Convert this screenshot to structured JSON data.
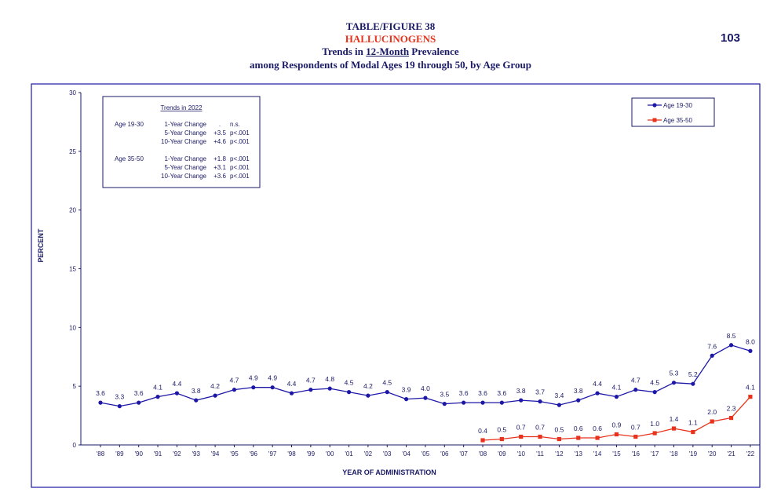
{
  "header": {
    "figure_label": "TABLE/FIGURE 38",
    "drug_name": "HALLUCINOGENS",
    "subtitle_pre": "Trends in ",
    "subtitle_emph": "12-Month",
    "subtitle_post": " Prevalence",
    "subtitle_line2": "among Respondents of Modal Ages 19 through 50, by Age Group",
    "page_number": "103"
  },
  "colors": {
    "title": "#1a1a66",
    "drug_name": "#e8321b",
    "age_19_30": "#1c17a6",
    "age_35_50": "#e8321b",
    "frame": "#1c17a6"
  },
  "trends_box": {
    "title": "Trends in 2022",
    "groups": [
      {
        "label": "Age 19-30",
        "rows": [
          {
            "change": "1-Year Change",
            "value": ".",
            "sig": "n.s."
          },
          {
            "change": "5-Year Change",
            "value": "+3.5",
            "sig": "p<.001"
          },
          {
            "change": "10-Year Change",
            "value": "+4.6",
            "sig": "p<.001"
          }
        ]
      },
      {
        "label": "Age 35-50",
        "rows": [
          {
            "change": "1-Year Change",
            "value": "+1.8",
            "sig": "p<.001"
          },
          {
            "change": "5-Year Change",
            "value": "+3.1",
            "sig": "p<.001"
          },
          {
            "change": "10-Year Change",
            "value": "+3.6",
            "sig": "p<.001"
          }
        ]
      }
    ]
  },
  "chart_data": {
    "type": "line",
    "xlabel": "YEAR OF ADMINISTRATION",
    "ylabel": "PERCENT",
    "ylim": [
      0,
      30
    ],
    "yticks": [
      0,
      5,
      10,
      15,
      20,
      25,
      30
    ],
    "grid": false,
    "legend_position": "top-right",
    "categories": [
      "'88",
      "'89",
      "'90",
      "'91",
      "'92",
      "'93",
      "'94",
      "'95",
      "'96",
      "'97",
      "'98",
      "'99",
      "'00",
      "'01",
      "'02",
      "'03",
      "'04",
      "'05",
      "'06",
      "'07",
      "'08",
      "'09",
      "'10",
      "'11",
      "'12",
      "'13",
      "'14",
      "'15",
      "'16",
      "'17",
      "'18",
      "'19",
      "'20",
      "'21",
      "'22"
    ],
    "series": [
      {
        "name": "Age 19-30",
        "marker": "circle",
        "values": [
          3.6,
          3.3,
          3.6,
          4.1,
          4.4,
          3.8,
          4.2,
          4.7,
          4.9,
          4.9,
          4.4,
          4.7,
          4.8,
          4.5,
          4.2,
          4.5,
          3.9,
          4.0,
          3.5,
          3.6,
          3.6,
          3.6,
          3.8,
          3.7,
          3.4,
          3.8,
          4.4,
          4.1,
          4.7,
          4.5,
          5.3,
          5.2,
          7.6,
          8.5,
          8.0
        ],
        "labels": [
          "3.6",
          "3.3",
          "3.6",
          "4.1",
          "4.4",
          "3.8",
          "4.2",
          "4.7",
          "4.9",
          "4.9",
          "4.4",
          "4.7",
          "4.8",
          "4.5",
          "4.2",
          "4.5",
          "3.9",
          "4.0",
          "3.5",
          "3.6",
          "3.6",
          "3.6",
          "3.8",
          "3.7",
          "3.4",
          "3.8",
          "4.4",
          "4.1",
          "4.7",
          "4.5",
          "5.3",
          "5.2",
          "7.6",
          "8.5",
          "8.0"
        ]
      },
      {
        "name": "Age 35-50",
        "marker": "square",
        "values": [
          null,
          null,
          null,
          null,
          null,
          null,
          null,
          null,
          null,
          null,
          null,
          null,
          null,
          null,
          null,
          null,
          null,
          null,
          null,
          null,
          0.4,
          0.5,
          0.7,
          0.7,
          0.5,
          0.6,
          0.6,
          0.9,
          0.7,
          1.0,
          1.4,
          1.1,
          2.0,
          2.3,
          4.1
        ],
        "labels": [
          null,
          null,
          null,
          null,
          null,
          null,
          null,
          null,
          null,
          null,
          null,
          null,
          null,
          null,
          null,
          null,
          null,
          null,
          null,
          null,
          "0.4",
          "0.5",
          "0.7",
          "0.7",
          "0.5",
          "0.6",
          "0.6",
          "0.9",
          "0.7",
          "1.0",
          "1.4",
          "1.1",
          "2.0",
          "2.3",
          "4.1"
        ]
      }
    ]
  }
}
